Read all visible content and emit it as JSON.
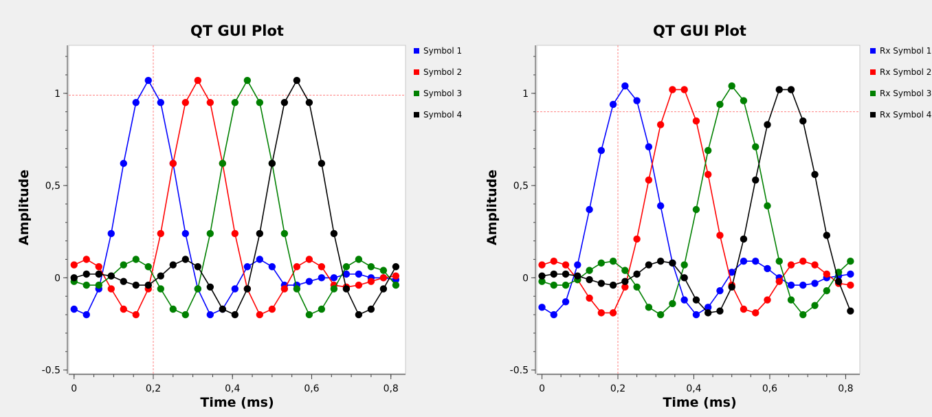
{
  "chart_data": [
    {
      "type": "line",
      "title": "QT GUI Plot",
      "xlabel": "Time (ms)",
      "ylabel": "Amplitude",
      "xlim": [
        -0.01,
        0.83
      ],
      "ylim": [
        -0.52,
        1.26
      ],
      "xticks": [
        0,
        0.2,
        0.4,
        0.6,
        0.8
      ],
      "xtick_labels": [
        "0",
        "0,2",
        "0,4",
        "0,6",
        "0,8"
      ],
      "yticks": [
        -0.5,
        0,
        0.5,
        1
      ],
      "ytick_labels": [
        "-0.5",
        "0",
        "0,5",
        "1"
      ],
      "grid": false,
      "legend": "right",
      "marker": {
        "x": 0.2,
        "y": 0.99
      },
      "x": [
        0,
        0.03125,
        0.0625,
        0.09375,
        0.125,
        0.15625,
        0.1875,
        0.21875,
        0.25,
        0.28125,
        0.3125,
        0.34375,
        0.375,
        0.40625,
        0.4375,
        0.46875,
        0.5,
        0.53125,
        0.5625,
        0.59375,
        0.625,
        0.65625,
        0.6875,
        0.71875,
        0.75,
        0.78125,
        0.8125
      ],
      "series": [
        {
          "name": "Symbol 1",
          "color": "#0000ff",
          "values": [
            -0.17,
            -0.2,
            -0.06,
            0.24,
            0.62,
            0.95,
            1.07,
            0.95,
            0.62,
            0.24,
            -0.06,
            -0.2,
            -0.17,
            -0.06,
            0.06,
            0.1,
            0.06,
            -0.04,
            -0.04,
            -0.02,
            0,
            0,
            0.02,
            0.02,
            0,
            0,
            -0.01
          ]
        },
        {
          "name": "Symbol 2",
          "color": "#ff0000",
          "values": [
            0.07,
            0.1,
            0.06,
            -0.06,
            -0.17,
            -0.2,
            -0.06,
            0.24,
            0.62,
            0.95,
            1.07,
            0.95,
            0.62,
            0.24,
            -0.06,
            -0.2,
            -0.17,
            -0.06,
            0.06,
            0.1,
            0.06,
            -0.04,
            -0.05,
            -0.04,
            -0.02,
            0,
            0.01
          ]
        },
        {
          "name": "Symbol 3",
          "color": "#008000",
          "values": [
            -0.02,
            -0.04,
            -0.04,
            0.01,
            0.07,
            0.1,
            0.06,
            -0.06,
            -0.17,
            -0.2,
            -0.06,
            0.24,
            0.62,
            0.95,
            1.07,
            0.95,
            0.62,
            0.24,
            -0.06,
            -0.2,
            -0.17,
            -0.06,
            0.06,
            0.1,
            0.06,
            0.04,
            -0.04
          ]
        },
        {
          "name": "Symbol 4",
          "color": "#000000",
          "values": [
            0,
            0.02,
            0.02,
            0.01,
            -0.02,
            -0.04,
            -0.04,
            0.01,
            0.07,
            0.1,
            0.06,
            -0.05,
            -0.17,
            -0.2,
            -0.06,
            0.24,
            0.62,
            0.95,
            1.07,
            0.95,
            0.62,
            0.24,
            -0.06,
            -0.2,
            -0.17,
            -0.06,
            0.06
          ]
        }
      ]
    },
    {
      "type": "line",
      "title": "QT GUI Plot",
      "xlabel": "Time (ms)",
      "ylabel": "Amplitude",
      "xlim": [
        -0.01,
        0.83
      ],
      "ylim": [
        -0.52,
        1.26
      ],
      "xticks": [
        0,
        0.2,
        0.4,
        0.6,
        0.8
      ],
      "xtick_labels": [
        "0",
        "0,2",
        "0,4",
        "0,6",
        "0,8"
      ],
      "yticks": [
        -0.5,
        0,
        0.5,
        1
      ],
      "ytick_labels": [
        "-0.5",
        "0",
        "0,5",
        "1"
      ],
      "grid": false,
      "legend": "right",
      "marker": {
        "x": 0.2,
        "y": 0.9
      },
      "x": [
        0,
        0.03125,
        0.0625,
        0.09375,
        0.125,
        0.15625,
        0.1875,
        0.21875,
        0.25,
        0.28125,
        0.3125,
        0.34375,
        0.375,
        0.40625,
        0.4375,
        0.46875,
        0.5,
        0.53125,
        0.5625,
        0.59375,
        0.625,
        0.65625,
        0.6875,
        0.71875,
        0.75,
        0.78125,
        0.8125
      ],
      "series": [
        {
          "name": "Rx Symbol 1",
          "color": "#0000ff",
          "values": [
            -0.16,
            -0.2,
            -0.13,
            0.07,
            0.37,
            0.69,
            0.94,
            1.04,
            0.96,
            0.71,
            0.39,
            0.08,
            -0.12,
            -0.2,
            -0.16,
            -0.07,
            0.03,
            0.09,
            0.09,
            0.05,
            0,
            -0.04,
            -0.04,
            -0.03,
            0,
            0.01,
            0.02
          ]
        },
        {
          "name": "Rx Symbol 2",
          "color": "#ff0000",
          "values": [
            0.07,
            0.09,
            0.07,
            -0.01,
            -0.11,
            -0.19,
            -0.19,
            -0.05,
            0.21,
            0.53,
            0.83,
            1.02,
            1.02,
            0.85,
            0.56,
            0.23,
            -0.04,
            -0.17,
            -0.19,
            -0.12,
            -0.02,
            0.07,
            0.09,
            0.07,
            0.02,
            -0.03,
            -0.04
          ]
        },
        {
          "name": "Rx Symbol 3",
          "color": "#008000",
          "values": [
            -0.02,
            -0.04,
            -0.04,
            -0.01,
            0.04,
            0.08,
            0.09,
            0.04,
            -0.05,
            -0.16,
            -0.2,
            -0.14,
            0.07,
            0.37,
            0.69,
            0.94,
            1.04,
            0.96,
            0.71,
            0.39,
            0.09,
            -0.12,
            -0.2,
            -0.15,
            -0.07,
            0.03,
            0.09
          ]
        },
        {
          "name": "Rx Symbol 4",
          "color": "#000000",
          "values": [
            0.01,
            0.02,
            0.02,
            0.01,
            -0.01,
            -0.03,
            -0.04,
            -0.02,
            0.02,
            0.07,
            0.09,
            0.08,
            0,
            -0.12,
            -0.19,
            -0.18,
            -0.05,
            0.21,
            0.53,
            0.83,
            1.02,
            1.02,
            0.85,
            0.56,
            0.23,
            -0.02,
            -0.18
          ]
        }
      ]
    }
  ]
}
